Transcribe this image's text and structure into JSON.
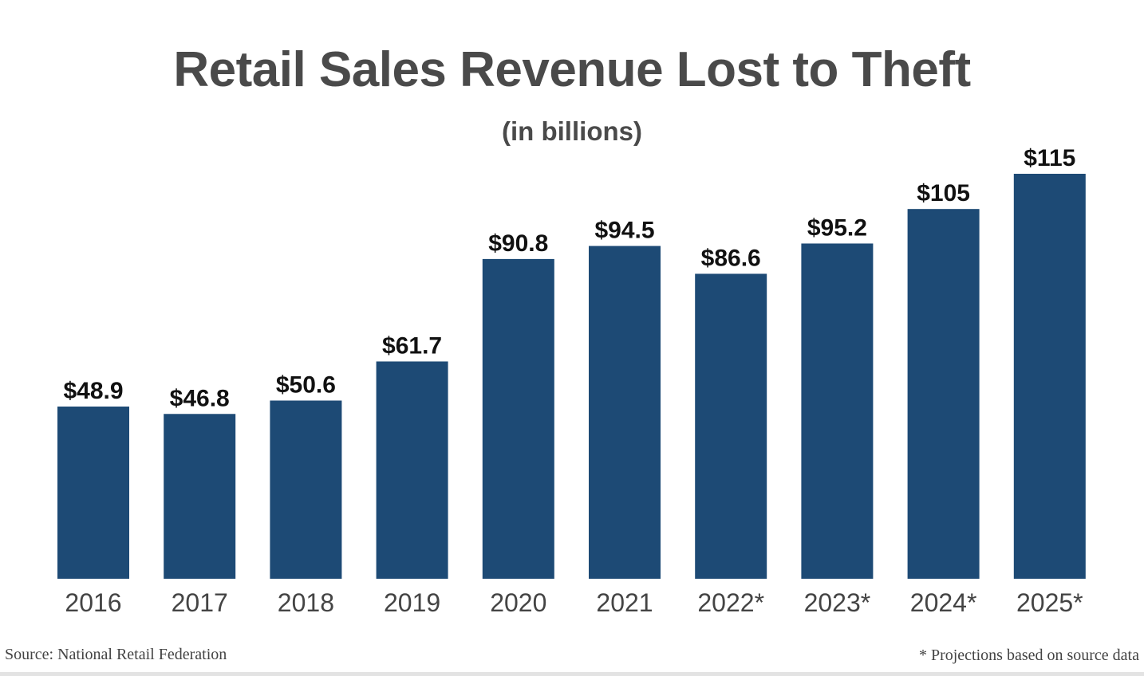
{
  "chart_data": {
    "type": "bar",
    "title": "Retail Sales Revenue Lost to Theft",
    "subtitle": "(in billions)",
    "categories": [
      "2016",
      "2017",
      "2018",
      "2019",
      "2020",
      "2021",
      "2022*",
      "2023*",
      "2024*",
      "2025*"
    ],
    "values": [
      48.9,
      46.8,
      50.6,
      61.7,
      90.8,
      94.5,
      86.6,
      95.2,
      105,
      115
    ],
    "data_labels": [
      "$48.9",
      "$46.8",
      "$50.6",
      "$61.7",
      "$90.8",
      "$94.5",
      "$86.6",
      "$95.2",
      "$105",
      "$115"
    ],
    "ylim": [
      0,
      115
    ],
    "grid": false,
    "y_axis_shown": false,
    "bar_color": "#1d4a75",
    "source": "Source: National Retail Federation",
    "footnote": "* Projections based on source data"
  }
}
